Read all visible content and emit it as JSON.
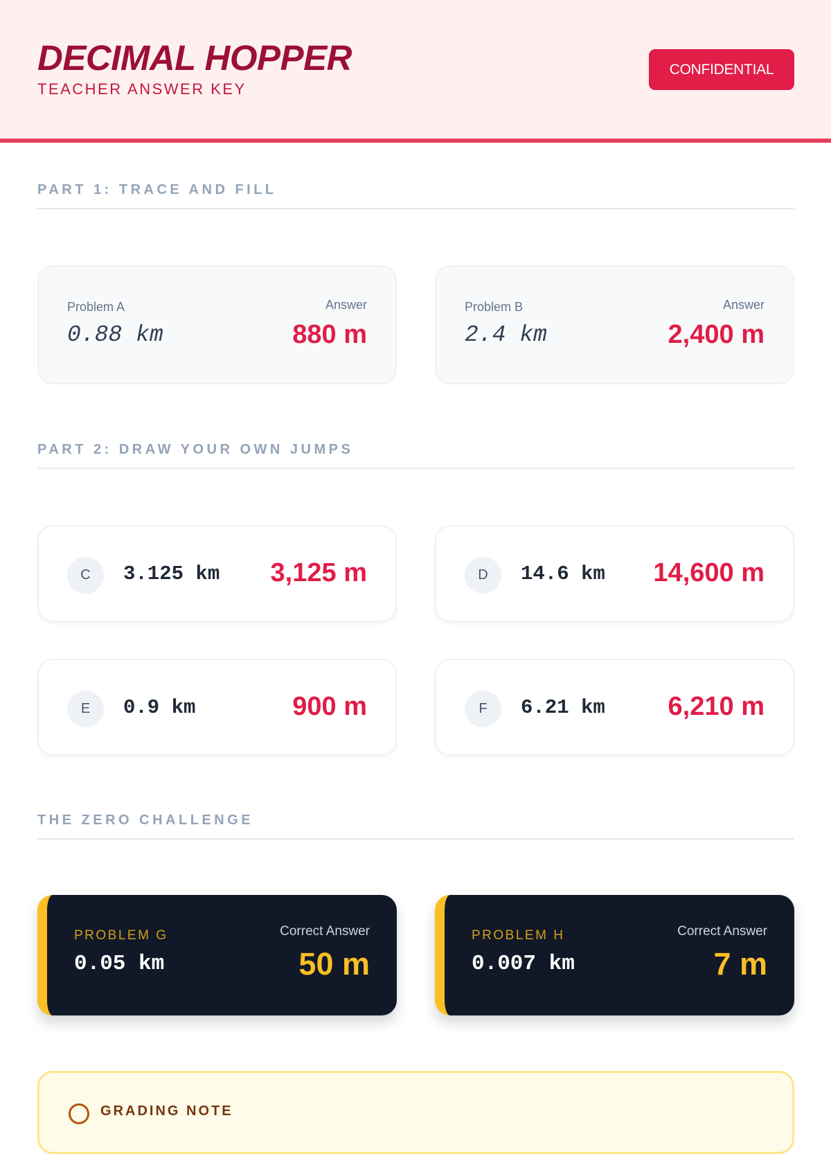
{
  "header": {
    "title": "DECIMAL HOPPER",
    "subtitle": "TEACHER ANSWER KEY",
    "badge": "CONFIDENTIAL"
  },
  "part1": {
    "heading": "PART 1: TRACE AND FILL",
    "problems": [
      {
        "label": "Problem A",
        "answer_label": "Answer",
        "value": "0.88 km",
        "answer": "880 m"
      },
      {
        "label": "Problem B",
        "answer_label": "Answer",
        "value": "2.4 km",
        "answer": "2,400 m"
      }
    ]
  },
  "part2": {
    "heading": "PART 2: DRAW YOUR OWN JUMPS",
    "problems": [
      {
        "letter": "C",
        "value": "3.125 km",
        "answer": "3,125 m"
      },
      {
        "letter": "D",
        "value": "14.6 km",
        "answer": "14,600 m"
      },
      {
        "letter": "E",
        "value": "0.9 km",
        "answer": "900 m"
      },
      {
        "letter": "F",
        "value": "6.21 km",
        "answer": "6,210 m"
      }
    ]
  },
  "challenge": {
    "heading": "THE ZERO CHALLENGE",
    "problems": [
      {
        "label": "PROBLEM G",
        "answer_label": "Correct Answer",
        "value": "0.05 km",
        "answer": "50 m"
      },
      {
        "label": "PROBLEM H",
        "answer_label": "Correct Answer",
        "value": "0.007 km",
        "answer": "7 m"
      }
    ]
  },
  "note": {
    "title": "GRADING NOTE"
  },
  "colors": {
    "accent": "#e11d48",
    "title": "#9b1035",
    "challenge_accent": "#fbbf24",
    "dark_card": "#111827"
  },
  "icons": {
    "note": "info-icon"
  }
}
